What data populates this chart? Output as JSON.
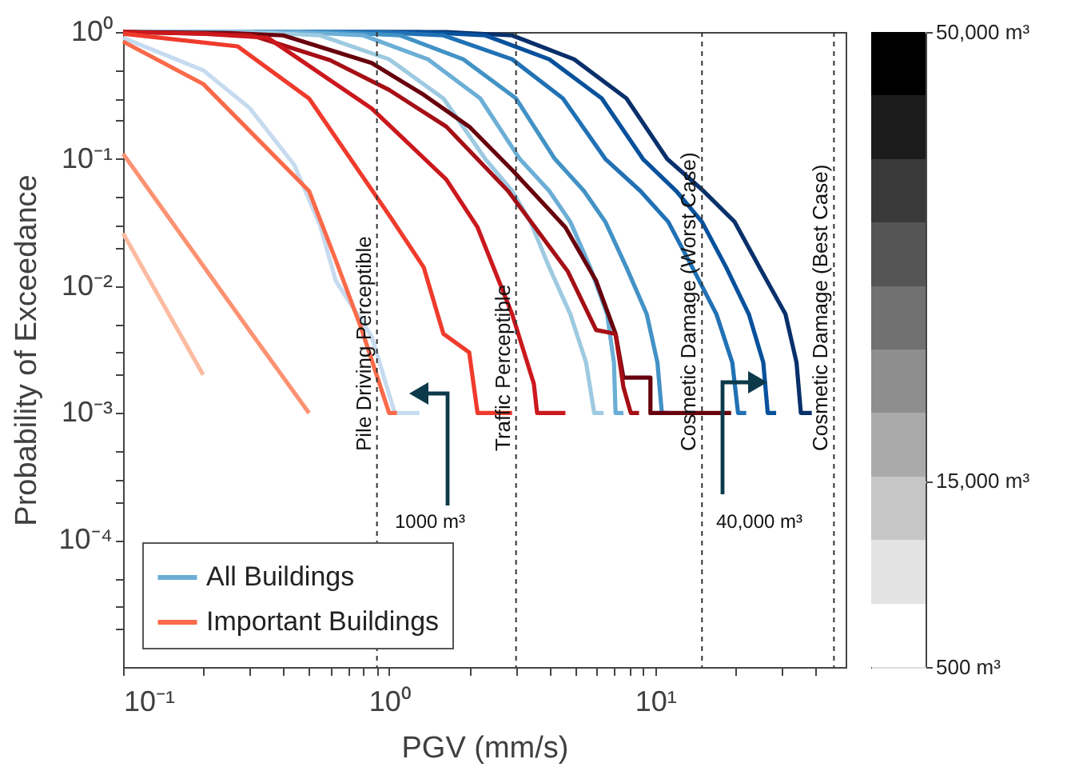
{
  "chart_data": {
    "type": "line",
    "xlabel": "PGV (mm/s)",
    "ylabel": "Probability of Exceedance",
    "log": "xy",
    "legend": "bottom left",
    "xlim": [
      0.1,
      52
    ],
    "ylim": [
      1e-05,
      1
    ],
    "xticks": [
      {
        "value": 0.1,
        "label": "10⁻¹"
      },
      {
        "value": 0.2,
        "label": null
      },
      {
        "value": 0.3,
        "label": null
      },
      {
        "value": 0.4,
        "label": null
      },
      {
        "value": 0.5,
        "label": null
      },
      {
        "value": 0.6,
        "label": null
      },
      {
        "value": 0.7,
        "label": null
      },
      {
        "value": 0.8,
        "label": null
      },
      {
        "value": 0.9,
        "label": null
      },
      {
        "value": 1,
        "label": "10⁰"
      },
      {
        "value": 2,
        "label": null
      },
      {
        "value": 3,
        "label": null
      },
      {
        "value": 4,
        "label": null
      },
      {
        "value": 5,
        "label": null
      },
      {
        "value": 6,
        "label": null
      },
      {
        "value": 7,
        "label": null
      },
      {
        "value": 8,
        "label": null
      },
      {
        "value": 9,
        "label": null
      },
      {
        "value": 10,
        "label": "10¹"
      },
      {
        "value": 20,
        "label": null
      },
      {
        "value": 30,
        "label": null
      },
      {
        "value": 40,
        "label": null
      }
    ],
    "yticks": [
      {
        "value": 1,
        "label": "10⁰"
      },
      {
        "value": 0.1,
        "label": "10⁻¹"
      },
      {
        "value": 0.01,
        "label": "10⁻²"
      },
      {
        "value": 0.001,
        "label": "10⁻³"
      },
      {
        "value": 0.0001,
        "label": "10⁻⁴"
      },
      {
        "value": 2e-05,
        "label": null
      },
      {
        "value": 3e-05,
        "label": null
      },
      {
        "value": 5e-05,
        "label": null
      },
      {
        "value": 0.0002,
        "label": null
      },
      {
        "value": 0.0003,
        "label": null
      },
      {
        "value": 0.0005,
        "label": null
      },
      {
        "value": 0.002,
        "label": null
      },
      {
        "value": 0.003,
        "label": null
      },
      {
        "value": 0.005,
        "label": null
      },
      {
        "value": 0.02,
        "label": null
      },
      {
        "value": 0.03,
        "label": null
      },
      {
        "value": 0.05,
        "label": null
      },
      {
        "value": 0.2,
        "label": null
      },
      {
        "value": 0.3,
        "label": null
      },
      {
        "value": 0.5,
        "label": null
      }
    ],
    "clim": [
      500,
      50000
    ],
    "cticks": [
      {
        "value": 500,
        "label": "500 m³"
      },
      {
        "value": 15000,
        "label": "15,000 m³"
      },
      {
        "value": 50000,
        "label": "50,000 m³"
      }
    ],
    "series": [
      {
        "color": "#08306b",
        "x": [
          0.1,
          1.64,
          2.9,
          4.96,
          7.8,
          11.1,
          15.2,
          19.9,
          24.7,
          30.9,
          34,
          35.3,
          38.8
        ],
        "values": [
          1,
          1,
          0.94,
          0.61,
          0.3,
          0.1,
          0.056,
          0.032,
          0.014,
          0.006,
          0.0025,
          0.001,
          0.001
        ]
      },
      {
        "color": "#08519c",
        "x": [
          0.1,
          1.3,
          2.3,
          4.0,
          6.3,
          9.0,
          12.0,
          15.0,
          18.5,
          22.5,
          25.5,
          26.5,
          28.5
        ],
        "values": [
          1,
          1,
          0.94,
          0.61,
          0.3,
          0.1,
          0.056,
          0.032,
          0.014,
          0.006,
          0.0025,
          0.001,
          0.001
        ]
      },
      {
        "color": "#2171b5",
        "x": [
          0.1,
          0.9,
          1.6,
          2.9,
          4.5,
          6.5,
          8.8,
          11.2,
          13.8,
          17,
          19.5,
          20.5,
          22
        ],
        "values": [
          1,
          1,
          0.94,
          0.61,
          0.3,
          0.1,
          0.056,
          0.032,
          0.014,
          0.006,
          0.0025,
          0.001,
          0.001
        ]
      },
      {
        "color": "#4292c6",
        "x": [
          0.1,
          0.6,
          1.1,
          1.9,
          3.0,
          4.2,
          5.4,
          6.5,
          7.8,
          9.3,
          10.2,
          10.6,
          11.2
        ],
        "values": [
          1,
          1,
          0.94,
          0.61,
          0.3,
          0.1,
          0.056,
          0.032,
          0.014,
          0.006,
          0.0025,
          0.001,
          0.001
        ]
      },
      {
        "name": "All Buildings",
        "color": "#6baed6",
        "x": [
          0.1,
          0.45,
          0.8,
          1.4,
          2.2,
          3.1,
          4.0,
          4.8,
          5.7,
          6.6,
          7.0,
          7.1,
          7.6
        ],
        "values": [
          1,
          1,
          0.94,
          0.61,
          0.3,
          0.1,
          0.056,
          0.032,
          0.014,
          0.006,
          0.0025,
          0.001,
          0.001
        ]
      },
      {
        "color": "#9ecae1",
        "x": [
          0.1,
          0.3,
          0.55,
          1.0,
          1.6,
          2.3,
          2.9,
          3.4,
          4.0,
          4.8,
          5.5,
          5.9,
          6.4
        ],
        "values": [
          1,
          1,
          0.94,
          0.61,
          0.3,
          0.1,
          0.056,
          0.032,
          0.014,
          0.006,
          0.0025,
          0.001,
          0.001
        ]
      },
      {
        "color": "#c6dbef",
        "x": [
          0.1,
          0.2,
          0.3,
          0.44,
          0.55,
          0.63,
          0.86,
          1.05,
          1.3
        ],
        "values": [
          0.9,
          0.5,
          0.25,
          0.09,
          0.03,
          0.011,
          0.004,
          0.001,
          0.001
        ]
      },
      {
        "color": "#67000d",
        "x": [
          0.1,
          0.25,
          0.4,
          0.86,
          1.35,
          2.0,
          2.9,
          4.6,
          6.0,
          7.1,
          7.6,
          9.6,
          9.6,
          19.3
        ],
        "values": [
          1,
          0.98,
          0.94,
          0.57,
          0.32,
          0.18,
          0.082,
          0.029,
          0.011,
          0.0042,
          0.0019,
          0.0019,
          0.001,
          0.001
        ]
      },
      {
        "color": "#a50f15",
        "x": [
          0.1,
          0.3,
          0.6,
          1.0,
          1.64,
          2.8,
          4.7,
          6.0,
          7.1,
          7.6,
          8.1,
          8.7
        ],
        "values": [
          1,
          0.95,
          0.6,
          0.35,
          0.18,
          0.056,
          0.013,
          0.0045,
          0.0042,
          0.0016,
          0.001,
          0.001
        ]
      },
      {
        "color": "#cb181d",
        "x": [
          0.1,
          0.2,
          0.35,
          0.86,
          1.64,
          2.15,
          2.9,
          3.5,
          3.6,
          4.6
        ],
        "values": [
          1,
          0.97,
          0.9,
          0.25,
          0.069,
          0.029,
          0.006,
          0.0017,
          0.001,
          0.001
        ]
      },
      {
        "color": "#ef3b2c",
        "x": [
          0.1,
          0.27,
          0.5,
          1.02,
          1.35,
          1.6,
          2.0,
          2.15,
          2.9
        ],
        "values": [
          0.97,
          0.77,
          0.3,
          0.034,
          0.014,
          0.0042,
          0.003,
          0.001,
          0.001
        ]
      },
      {
        "name": "Important Buildings",
        "color": "#fb6a4a",
        "x": [
          0.1,
          0.2,
          0.5,
          0.63,
          0.79,
          1.0,
          1.07
        ],
        "values": [
          0.84,
          0.39,
          0.056,
          0.016,
          0.0045,
          0.001,
          0.001
        ]
      },
      {
        "color": "#fc9272",
        "x": [
          0.1,
          0.3,
          0.5
        ],
        "values": [
          0.11,
          0.0044,
          0.001
        ]
      },
      {
        "color": "#fcbba1",
        "x": [
          0.1,
          0.2
        ],
        "values": [
          0.026,
          0.002
        ]
      }
    ],
    "ref_lines": [
      {
        "axis": "x",
        "value": 0.9,
        "label": "Pile Driving Perceptible",
        "line_style": "dashed"
      },
      {
        "axis": "x",
        "value": 3,
        "label": "Traffic Perceptible",
        "line_style": "dashed"
      },
      {
        "axis": "x",
        "value": 15,
        "label": "Cosmetic Damage (Worst Case)",
        "line_style": "dashed"
      },
      {
        "axis": "x",
        "value": 47,
        "label": "Cosmetic Damage (Best Case)",
        "line_style": "dashed"
      }
    ],
    "annotations": [
      "1000 m³",
      "40,000 m³"
    ]
  }
}
